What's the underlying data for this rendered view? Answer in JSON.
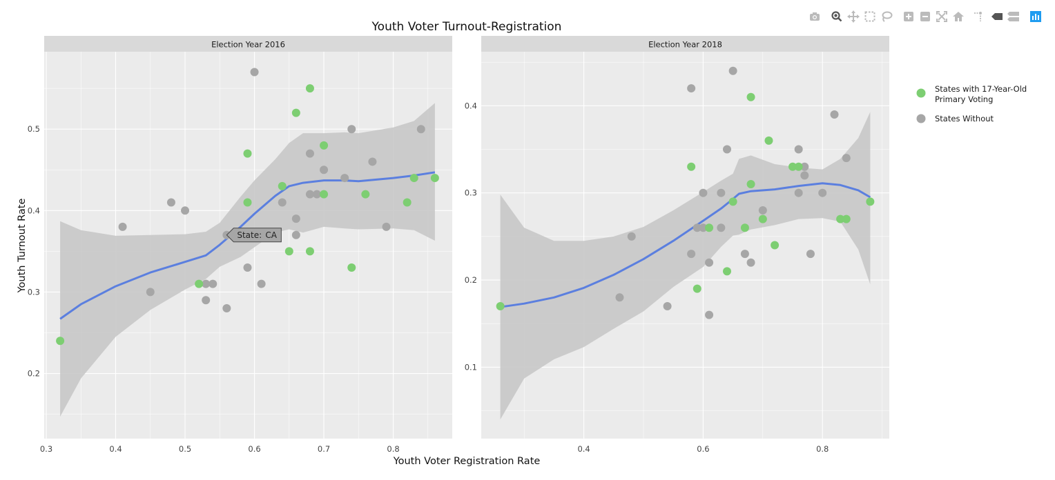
{
  "chart_data": {
    "type": "scatter",
    "title": "Youth Voter Turnout-Registration",
    "xlabel": "Youth Voter Registration Rate",
    "ylabel": "Youth Turnout Rate",
    "legend_position": "top-right",
    "grid": true,
    "legend": [
      {
        "key": "with",
        "lines": [
          "States with 17-Year-Old",
          "Primary Voting"
        ],
        "color": "#7dce72"
      },
      {
        "key": "without",
        "lines": [
          "States Without"
        ],
        "color": "#a6a6a6"
      }
    ],
    "colors": {
      "with": "#7dce72",
      "without": "#a6a6a6",
      "smooth": "#5b7fdf",
      "band": "#c8c8c8",
      "panel": "#ebebeb",
      "strip": "#d9d9d9"
    },
    "tooltip": {
      "panel": 0,
      "x": 0.56,
      "y": 0.37,
      "label": "State:",
      "value": "CA"
    },
    "panels": [
      {
        "strip": "Election Year 2016",
        "xlim": [
          0.297,
          0.885
        ],
        "ylim": [
          0.12,
          0.595
        ],
        "xticks": [
          0.3,
          0.4,
          0.5,
          0.6,
          0.7,
          0.8
        ],
        "xtick_labels": [
          "0.3",
          "0.4",
          "0.5",
          "0.6",
          "0.7",
          "0.8"
        ],
        "yticks": [
          0.2,
          0.3,
          0.4,
          0.5
        ],
        "ytick_labels": [
          "0.2",
          "0.3",
          "0.4",
          "0.5"
        ],
        "points_with": [
          [
            0.32,
            0.24
          ],
          [
            0.52,
            0.31
          ],
          [
            0.59,
            0.47
          ],
          [
            0.59,
            0.41
          ],
          [
            0.64,
            0.43
          ],
          [
            0.65,
            0.35
          ],
          [
            0.66,
            0.52
          ],
          [
            0.68,
            0.55
          ],
          [
            0.68,
            0.35
          ],
          [
            0.7,
            0.48
          ],
          [
            0.7,
            0.42
          ],
          [
            0.74,
            0.33
          ],
          [
            0.76,
            0.42
          ],
          [
            0.82,
            0.41
          ],
          [
            0.83,
            0.44
          ],
          [
            0.86,
            0.44
          ]
        ],
        "points_without": [
          [
            0.41,
            0.38
          ],
          [
            0.45,
            0.3
          ],
          [
            0.48,
            0.41
          ],
          [
            0.5,
            0.4
          ],
          [
            0.53,
            0.31
          ],
          [
            0.53,
            0.29
          ],
          [
            0.54,
            0.31
          ],
          [
            0.56,
            0.37
          ],
          [
            0.56,
            0.28
          ],
          [
            0.59,
            0.33
          ],
          [
            0.6,
            0.57
          ],
          [
            0.61,
            0.31
          ],
          [
            0.64,
            0.41
          ],
          [
            0.66,
            0.39
          ],
          [
            0.66,
            0.37
          ],
          [
            0.68,
            0.47
          ],
          [
            0.68,
            0.42
          ],
          [
            0.69,
            0.42
          ],
          [
            0.7,
            0.45
          ],
          [
            0.73,
            0.44
          ],
          [
            0.74,
            0.5
          ],
          [
            0.77,
            0.46
          ],
          [
            0.79,
            0.38
          ],
          [
            0.84,
            0.5
          ]
        ],
        "smooth": {
          "x": [
            0.32,
            0.35,
            0.4,
            0.45,
            0.5,
            0.53,
            0.55,
            0.58,
            0.6,
            0.63,
            0.65,
            0.67,
            0.7,
            0.73,
            0.75,
            0.8,
            0.83,
            0.86
          ],
          "y": [
            0.267,
            0.285,
            0.307,
            0.324,
            0.337,
            0.345,
            0.358,
            0.38,
            0.396,
            0.418,
            0.43,
            0.434,
            0.437,
            0.437,
            0.436,
            0.44,
            0.443,
            0.447
          ],
          "upper": [
            0.387,
            0.376,
            0.369,
            0.37,
            0.371,
            0.374,
            0.385,
            0.417,
            0.437,
            0.463,
            0.483,
            0.495,
            0.495,
            0.496,
            0.495,
            0.502,
            0.51,
            0.532
          ],
          "lower": [
            0.147,
            0.194,
            0.245,
            0.278,
            0.303,
            0.316,
            0.331,
            0.343,
            0.355,
            0.373,
            0.377,
            0.373,
            0.38,
            0.378,
            0.377,
            0.378,
            0.376,
            0.363
          ]
        }
      },
      {
        "strip": "Election Year 2018",
        "xlim": [
          0.228,
          0.912
        ],
        "ylim": [
          0.018,
          0.462
        ],
        "xticks": [
          0.4,
          0.6,
          0.8
        ],
        "xtick_labels": [
          "0.4",
          "0.6",
          "0.8"
        ],
        "yticks": [
          0.1,
          0.2,
          0.3,
          0.4
        ],
        "ytick_labels": [
          "0.1",
          "0.2",
          "0.3",
          "0.4"
        ],
        "points_with": [
          [
            0.26,
            0.17
          ],
          [
            0.58,
            0.33
          ],
          [
            0.59,
            0.19
          ],
          [
            0.61,
            0.26
          ],
          [
            0.64,
            0.21
          ],
          [
            0.65,
            0.29
          ],
          [
            0.67,
            0.26
          ],
          [
            0.68,
            0.41
          ],
          [
            0.68,
            0.31
          ],
          [
            0.7,
            0.27
          ],
          [
            0.71,
            0.36
          ],
          [
            0.72,
            0.24
          ],
          [
            0.75,
            0.33
          ],
          [
            0.76,
            0.33
          ],
          [
            0.83,
            0.27
          ],
          [
            0.84,
            0.27
          ],
          [
            0.88,
            0.29
          ]
        ],
        "points_without": [
          [
            0.46,
            0.18
          ],
          [
            0.48,
            0.25
          ],
          [
            0.54,
            0.17
          ],
          [
            0.58,
            0.42
          ],
          [
            0.58,
            0.23
          ],
          [
            0.59,
            0.26
          ],
          [
            0.6,
            0.3
          ],
          [
            0.6,
            0.26
          ],
          [
            0.61,
            0.22
          ],
          [
            0.61,
            0.16
          ],
          [
            0.63,
            0.3
          ],
          [
            0.63,
            0.26
          ],
          [
            0.64,
            0.35
          ],
          [
            0.65,
            0.44
          ],
          [
            0.67,
            0.23
          ],
          [
            0.68,
            0.22
          ],
          [
            0.7,
            0.28
          ],
          [
            0.76,
            0.35
          ],
          [
            0.76,
            0.3
          ],
          [
            0.77,
            0.33
          ],
          [
            0.77,
            0.32
          ],
          [
            0.78,
            0.23
          ],
          [
            0.8,
            0.3
          ],
          [
            0.82,
            0.39
          ],
          [
            0.84,
            0.34
          ]
        ],
        "smooth": {
          "x": [
            0.26,
            0.3,
            0.35,
            0.4,
            0.45,
            0.5,
            0.55,
            0.6,
            0.63,
            0.65,
            0.66,
            0.68,
            0.72,
            0.76,
            0.8,
            0.83,
            0.86,
            0.88
          ],
          "y": [
            0.169,
            0.173,
            0.18,
            0.191,
            0.206,
            0.224,
            0.245,
            0.268,
            0.282,
            0.293,
            0.299,
            0.302,
            0.304,
            0.308,
            0.311,
            0.309,
            0.303,
            0.295
          ],
          "upper": [
            0.298,
            0.26,
            0.245,
            0.245,
            0.25,
            0.261,
            0.28,
            0.301,
            0.314,
            0.322,
            0.339,
            0.343,
            0.333,
            0.329,
            0.327,
            0.339,
            0.363,
            0.393
          ],
          "lower": [
            0.04,
            0.087,
            0.109,
            0.123,
            0.144,
            0.164,
            0.192,
            0.215,
            0.238,
            0.251,
            0.252,
            0.258,
            0.263,
            0.27,
            0.271,
            0.267,
            0.235,
            0.195
          ]
        }
      }
    ]
  },
  "modebar": {
    "buttons": [
      {
        "name": "camera-icon"
      },
      {
        "name": "zoom-icon"
      },
      {
        "name": "pan-icon"
      },
      {
        "name": "box-select-icon"
      },
      {
        "name": "lasso-select-icon"
      },
      {
        "name": "zoom-in-icon"
      },
      {
        "name": "zoom-out-icon"
      },
      {
        "name": "autoscale-icon"
      },
      {
        "name": "reset-axes-icon"
      },
      {
        "name": "spike-lines-icon"
      },
      {
        "name": "hover-closest-icon"
      },
      {
        "name": "hover-compare-icon"
      },
      {
        "name": "plotly-logo-icon"
      }
    ]
  }
}
